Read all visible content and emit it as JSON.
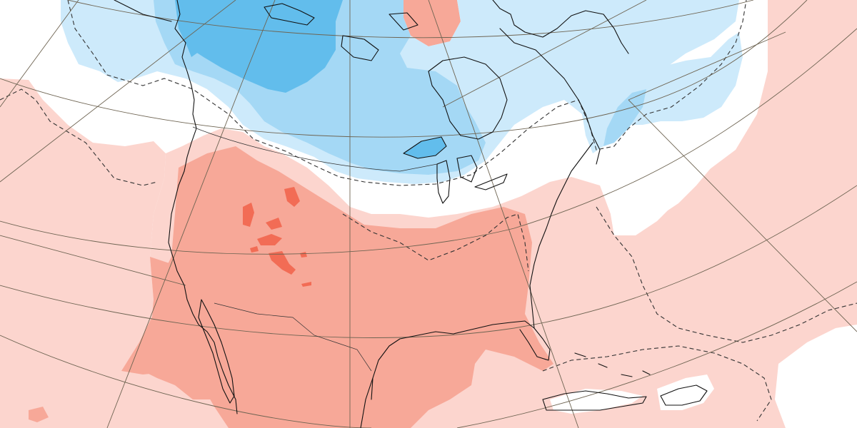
{
  "map": {
    "type": "anomaly-field",
    "region": "north-america",
    "zero_contour_style": "dashed",
    "colors": {
      "warm_light": "#fcd5ce",
      "warm_medium": "#f7a898",
      "warm_strong": "#f26c55",
      "warm_extreme": "#e8432e",
      "cool_light": "#cdeafb",
      "cool_medium": "#a4d8f5",
      "cool_strong": "#62bdec",
      "cool_extreme": "#2aa9ea",
      "neutral": "#ffffff",
      "coastline": "#111111",
      "graticule": "#6e6452"
    }
  }
}
